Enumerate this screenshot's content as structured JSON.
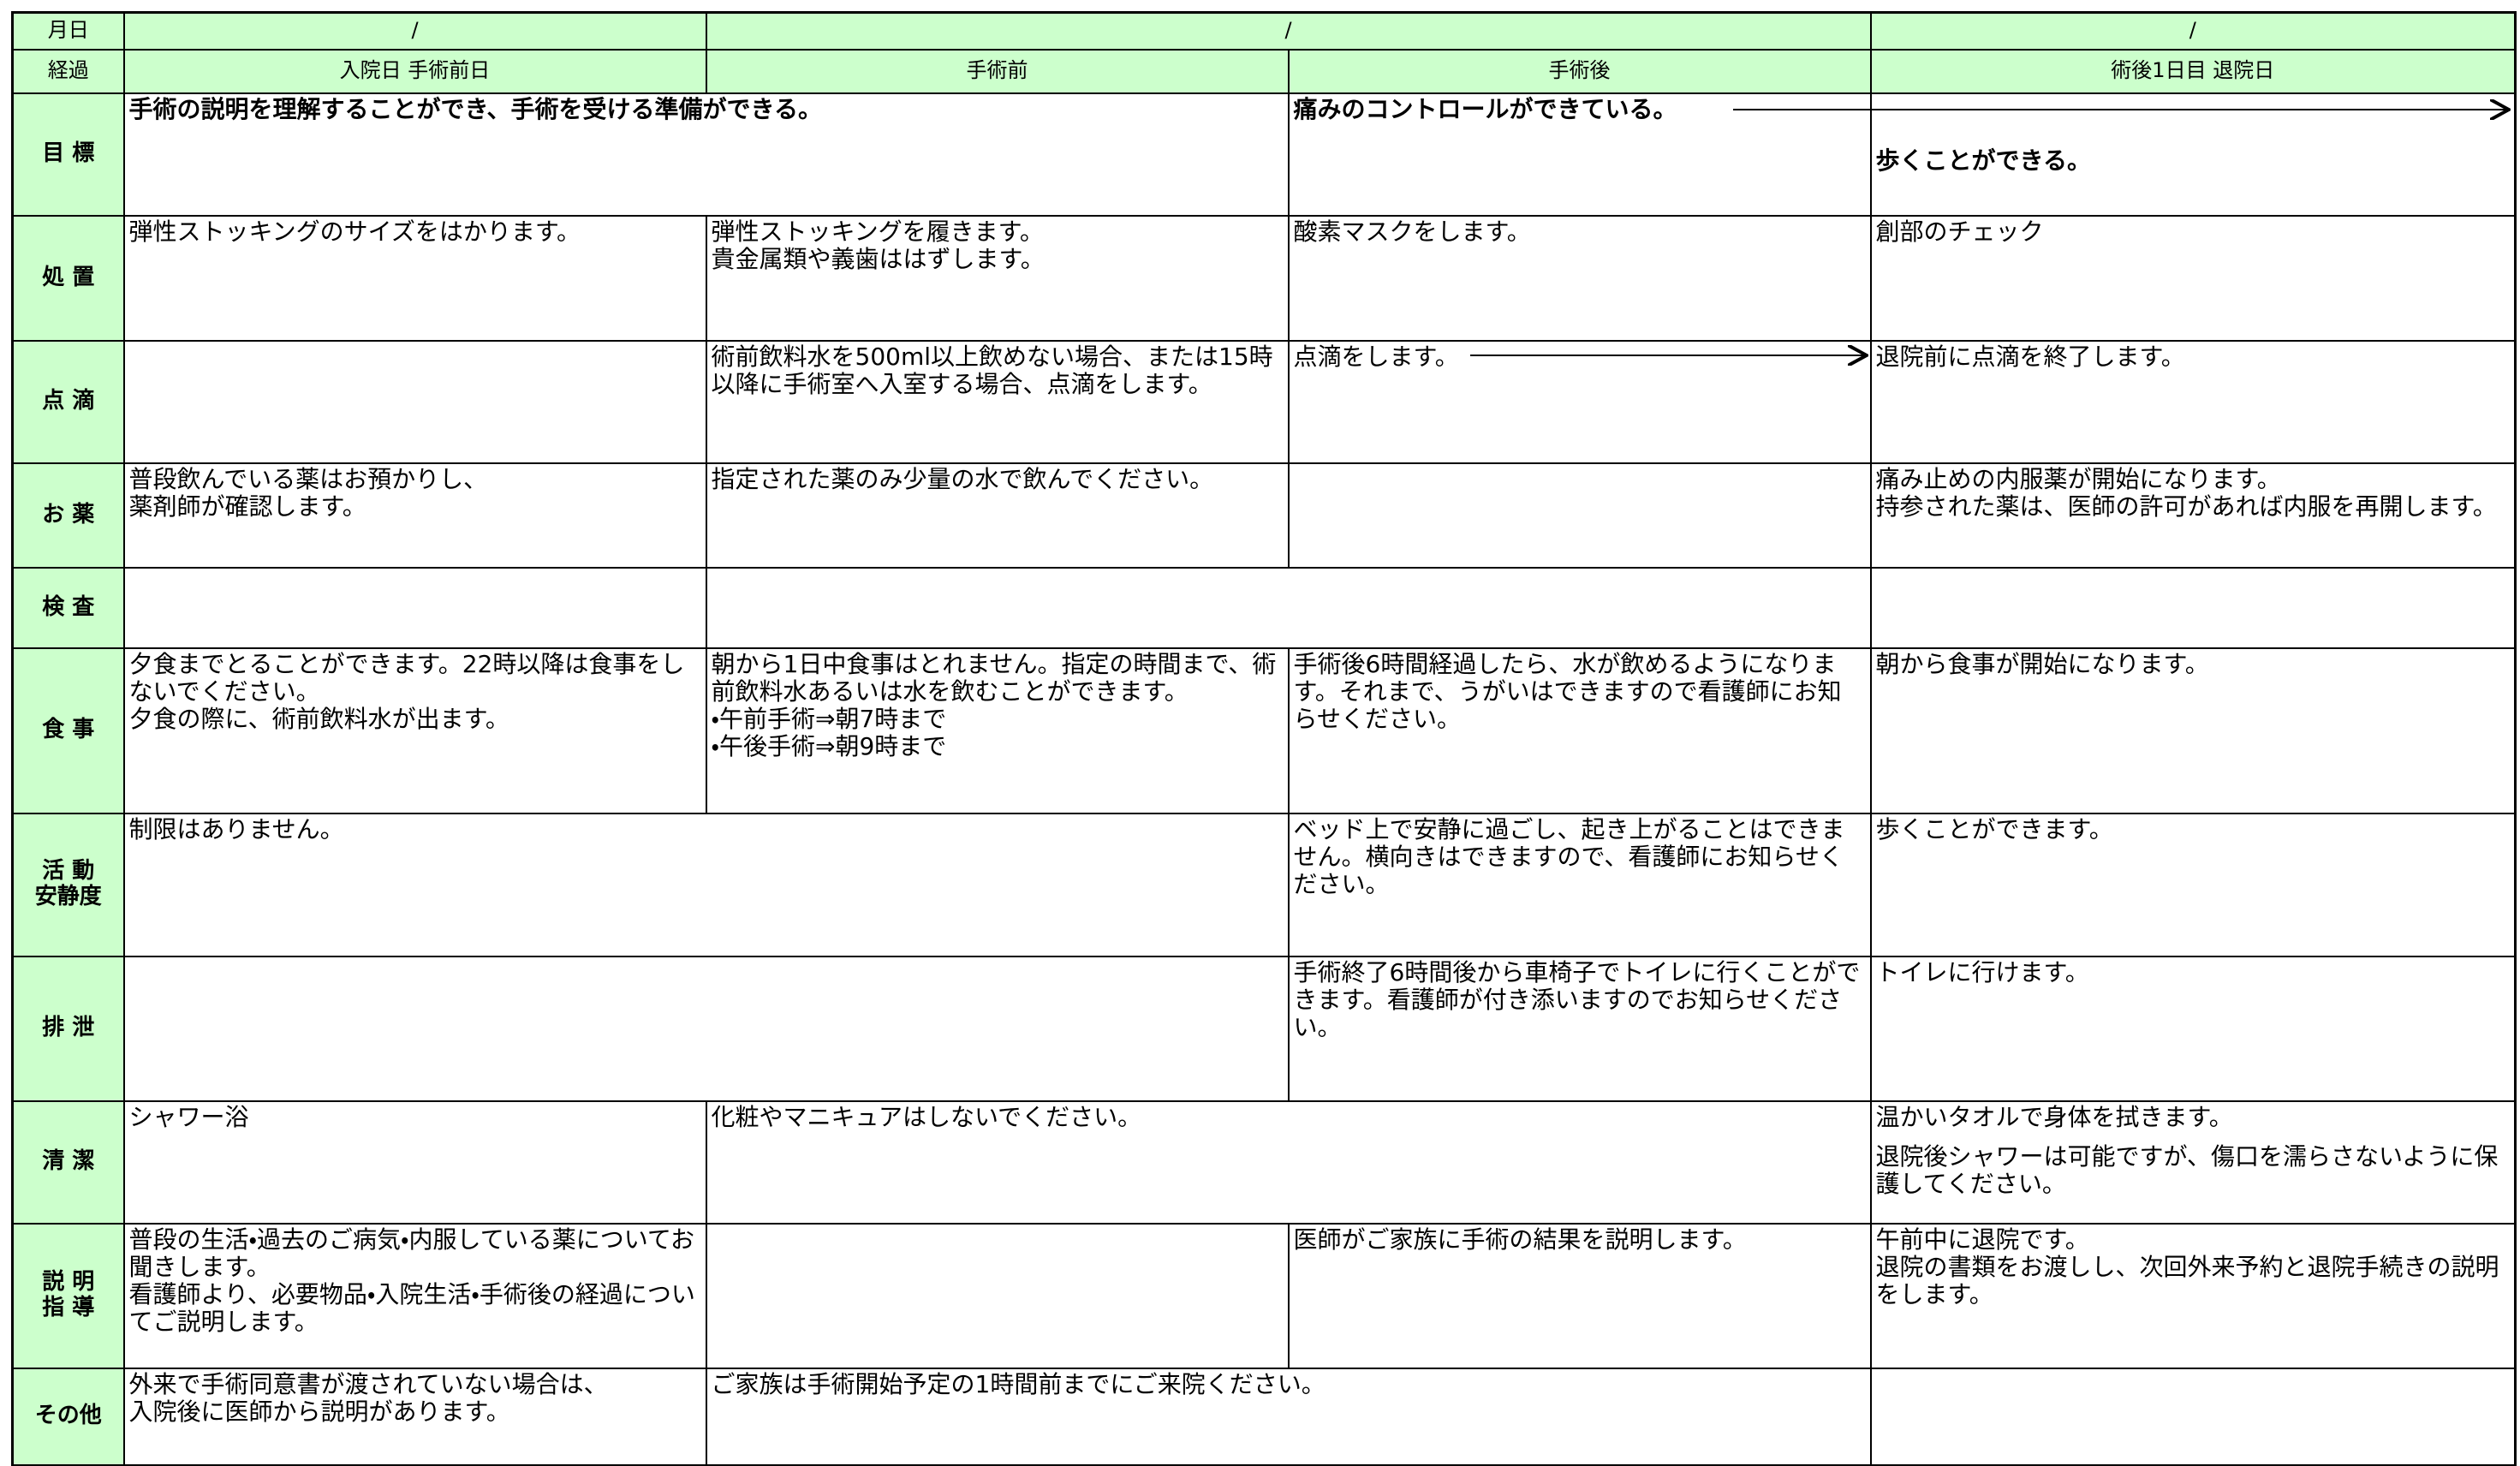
{
  "header": {
    "date_label": "月日",
    "dates": [
      "/",
      "/",
      "/"
    ],
    "phase_label": "経過",
    "phases": [
      "入院日 手術前日",
      "手術前",
      "手術後",
      "術後1日目 退院日"
    ]
  },
  "rows": [
    {
      "label": "目 標",
      "cells": [
        "手術の説明を理解することができ、手術を受ける準備ができる。",
        "痛みのコントロールができている。",
        "歩くことができる。"
      ]
    },
    {
      "label": "処 置",
      "cells": [
        "弾性ストッキングのサイズをはかります。",
        "弾性ストッキングを履きます。\n貴金属類や義歯ははずします。",
        "酸素マスクをします。",
        "創部のチェック"
      ]
    },
    {
      "label": "点 滴",
      "cells": [
        "術前飲料水を500ml以上飲めない場合、または15時以降に手術室へ入室する場合、点滴をします。",
        "点滴をします。",
        "退院前に点滴を終了します。"
      ]
    },
    {
      "label": "お 薬",
      "cells": [
        "普段飲んでいる薬はお預かりし、\n薬剤師が確認します。",
        "指定された薬のみ少量の水で飲んでください。",
        "痛み止めの内服薬が開始になります。\n持参された薬は、医師の許可があれば内服を再開します。"
      ]
    },
    {
      "label": "検 査"
    },
    {
      "label": "食 事",
      "cells": [
        "夕食までとることができます。22時以降は食事をしないでください。\n夕食の際に、術前飲料水が出ます。",
        "朝から1日中食事はとれません。指定の時間まで、術前飲料水あるいは水を飲むことができます。\n・午前手術⇒朝7時まで\n・午後手術⇒朝9時まで",
        "手術後6時間経過したら、水が飲めるようになります。それまで、うがいはできますので看護師にお知らせください。",
        "朝から食事が開始になります。"
      ]
    },
    {
      "label": "活 動\n安静度",
      "cells": [
        "制限はありません。",
        "ベッド上で安静に過ごし、起き上がることはできません。横向きはできますので、看護師にお知らせください。",
        "歩くことができます。"
      ]
    },
    {
      "label": "排 泄",
      "cells": [
        "手術終了6時間後から車椅子でトイレに行くことができます。看護師が付き添いますのでお知らせください。",
        "トイレに行けます。"
      ]
    },
    {
      "label": "清 潔",
      "cells": [
        "シャワー浴",
        "化粧やマニキュアはしないでください。",
        "温かいタオルで身体を拭きます。",
        "退院後シャワーは可能ですが、傷口を濡らさないように保護してください。"
      ]
    },
    {
      "label": "説 明\n指 導",
      "cells": [
        "普段の生活・過去のご病気・内服している薬についてお聞きします。\n看護師より、必要物品・入院生活・手術後の経過についてご説明します。",
        "医師がご家族に手術の結果を説明します。",
        "午前中に退院です。\n退院の書類をお渡しし、次回外来予約と退院手続きの説明をします。"
      ]
    },
    {
      "label": "その他",
      "cells": [
        "外来で手術同意書が渡されていない場合は、\n入院後に医師から説明があります。",
        "ご家族は手術開始予定の1時間前までにご来院ください。"
      ]
    }
  ]
}
